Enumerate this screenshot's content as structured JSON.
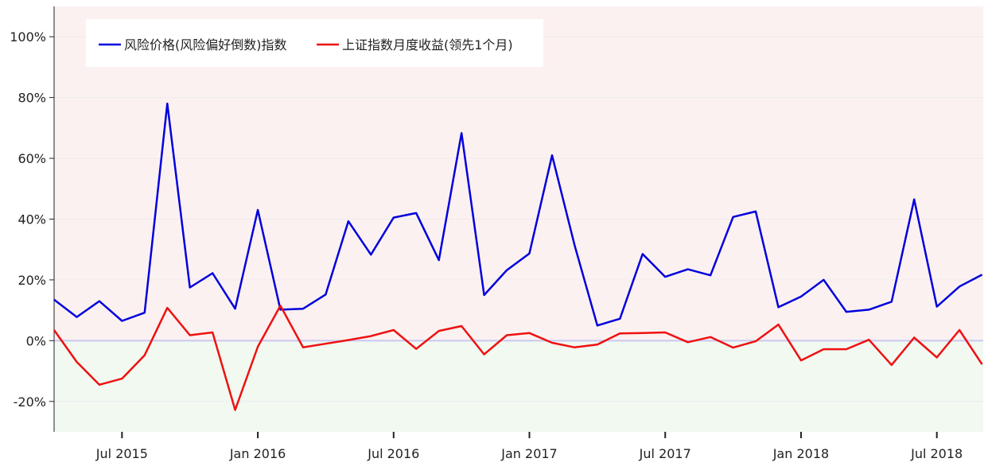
{
  "chart_data": {
    "type": "line",
    "title": "",
    "xlabel": "",
    "ylabel": "",
    "x": [
      "2015-04",
      "2015-05",
      "2015-06",
      "2015-07",
      "2015-08",
      "2015-09",
      "2015-10",
      "2015-11",
      "2015-12",
      "2016-01",
      "2016-02",
      "2016-03",
      "2016-04",
      "2016-05",
      "2016-06",
      "2016-07",
      "2016-08",
      "2016-09",
      "2016-10",
      "2016-11",
      "2016-12",
      "2017-01",
      "2017-02",
      "2017-03",
      "2017-04",
      "2017-05",
      "2017-06",
      "2017-07",
      "2017-08",
      "2017-09",
      "2017-10",
      "2017-11",
      "2017-12",
      "2018-01",
      "2018-02",
      "2018-03",
      "2018-04",
      "2018-05",
      "2018-06",
      "2018-07",
      "2018-08",
      "2018-09"
    ],
    "x_ticks": [
      "Jul 2015",
      "Jan 2016",
      "Jul 2016",
      "Jan 2017",
      "Jul 2017",
      "Jan 2018",
      "Jul 2018"
    ],
    "x_tick_values": [
      "2015-07",
      "2016-01",
      "2016-07",
      "2017-01",
      "2017-07",
      "2018-01",
      "2018-07"
    ],
    "series": [
      {
        "name": "风险价格(风险偏好倒数)指数",
        "color": "#0000dd",
        "values": [
          13.5,
          7.8,
          13.0,
          6.5,
          9.2,
          78.0,
          17.5,
          22.2,
          10.5,
          43.0,
          10.2,
          10.5,
          15.2,
          39.3,
          28.3,
          40.5,
          42.0,
          26.5,
          68.3,
          15.0,
          23.2,
          28.7,
          61.0,
          31.3,
          5.0,
          7.2,
          28.5,
          21.0,
          23.5,
          21.5,
          40.7,
          42.5,
          11.0,
          14.5,
          20.0,
          9.5,
          10.2,
          12.8,
          46.5,
          11.2,
          17.8,
          21.7
        ]
      },
      {
        "name": "上证指数月度收益(领先1个月)",
        "color": "#ee1111",
        "values": [
          3.5,
          -7.0,
          -14.5,
          -12.5,
          -4.8,
          10.8,
          1.8,
          2.7,
          -22.8,
          -2.0,
          11.5,
          -2.2,
          -1.0,
          0.2,
          1.5,
          3.5,
          -2.7,
          3.2,
          4.8,
          -4.5,
          1.8,
          2.5,
          -0.7,
          -2.2,
          -1.3,
          2.4,
          2.5,
          2.7,
          -0.5,
          1.2,
          -2.3,
          -0.2,
          5.3,
          -6.5,
          -2.8,
          -2.8,
          0.3,
          -8.0,
          1.0,
          -5.5,
          3.5,
          -7.8
        ]
      }
    ],
    "x_extra_right": -0.05,
    "ylim": [
      -30,
      110
    ],
    "y_ticks": [
      "-20%",
      "0%",
      "20%",
      "40%",
      "60%",
      "80%",
      "100%"
    ],
    "y_tick_values": [
      -20,
      0,
      20,
      40,
      60,
      80,
      100
    ],
    "grid": true,
    "legend_position": "top-left",
    "regions": [
      {
        "range": [
          0,
          110
        ],
        "color": "#fcf1f1"
      },
      {
        "range": [
          -30,
          0
        ],
        "color": "#f1f9f1"
      }
    ],
    "zero_line_color": "#c8c8f0"
  }
}
